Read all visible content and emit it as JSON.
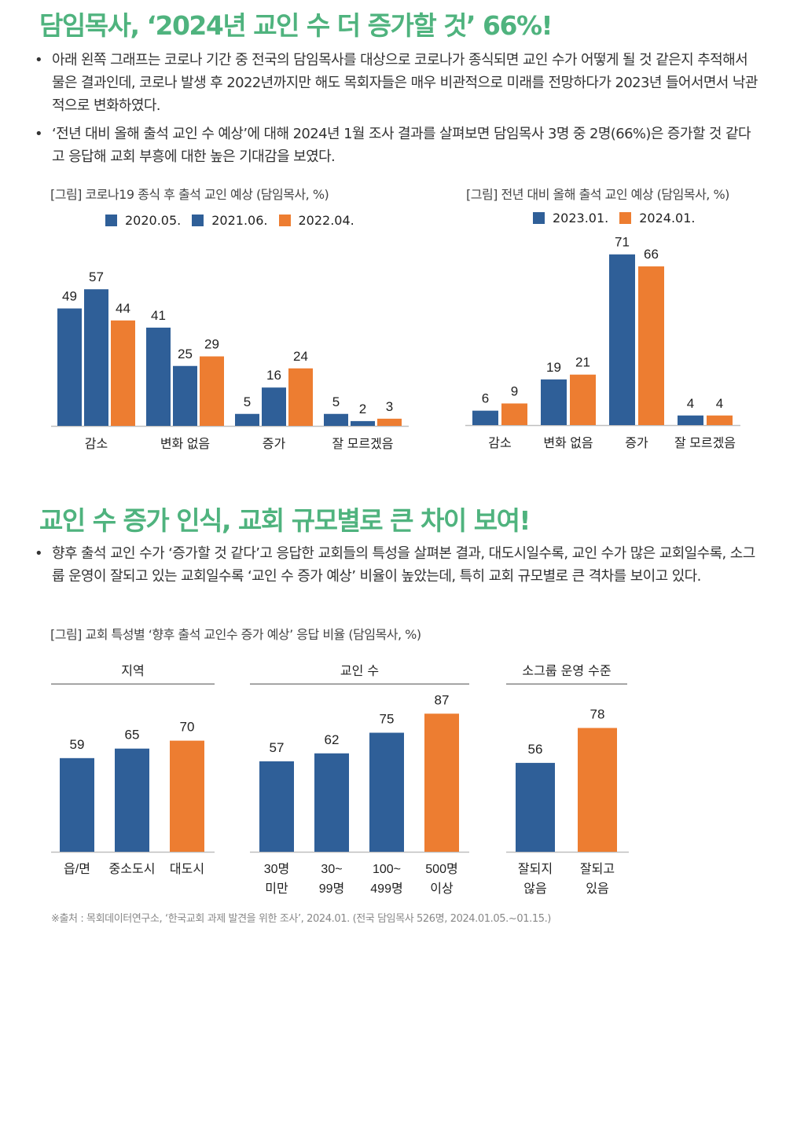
{
  "colors": {
    "title_green": "#4fb37e",
    "blue": "#2f5f98",
    "orange": "#ed7d31",
    "axis": "#bfbfbf"
  },
  "section1": {
    "title": "담임목사, ‘2024년 교인 수 더 증가할 것’ 66%!",
    "bullets": [
      "아래 왼쪽 그래프는 코로나 기간 중 전국의 담임목사를 대상으로 코로나가 종식되면 교인 수가 어떻게 될 것 같은지 추적해서 물은 결과인데, 코로나 발생 후 2022년까지만 해도 목회자들은 매우 비관적으로 미래를 전망하다가 2023년 들어서면서 낙관적으로 변화하였다.",
      "‘전년 대비 올해 출석 교인 수 예상’에 대해 2024년 1월 조사 결과를 살펴보면 담임목사 3명 중 2명(66%)은 증가할 것 같다고 응답해 교회 부흥에 대한 높은 기대감을 보였다."
    ],
    "bullet_glyph": "•"
  },
  "section2": {
    "title": "교인 수 증가 인식, 교회 규모별로 큰 차이 보여!",
    "bullets": [
      "향후 출석 교인 수가 ‘증가할 것 같다’고 응답한 교회들의 특성을 살펴본 결과, 대도시일수록, 교인 수가 많은 교회일수록, 소그룹 운영이 잘되고 있는 교회일수록 ‘교인 수 증가 예상’ 비율이 높았는데, 특히 교회 규모별로 큰 격차를 보이고 있다."
    ]
  },
  "source": "※출처 : 목회데이터연구소, ‘한국교회 과제 발견을 위한 조사’, 2024.01. (전국 담임목사 526명, 2024.01.05.~01.15.)",
  "chart_data": [
    {
      "type": "bar",
      "title": "[그림] 코로나19 종식 후 출석 교인 예상 (담임목사, %)",
      "categories": [
        "감소",
        "변화 없음",
        "증가",
        "잘 모르겠음"
      ],
      "series": [
        {
          "name": "2020.05.",
          "color": "#2f5f98",
          "values": [
            49,
            41,
            5,
            5
          ]
        },
        {
          "name": "2021.06.",
          "color": "#2f5f98",
          "values": [
            57,
            25,
            16,
            2
          ]
        },
        {
          "name": "2022.04.",
          "color": "#ed7d31",
          "values": [
            44,
            29,
            24,
            3
          ]
        }
      ],
      "legend": "top-center",
      "ylim": [
        0,
        60
      ],
      "xlabel": "",
      "ylabel": "",
      "grid": false
    },
    {
      "type": "bar",
      "title": "[그림] 전년 대비 올해 출석 교인 예상 (담임목사, %)",
      "categories": [
        "감소",
        "변화 없음",
        "증가",
        "잘 모르겠음"
      ],
      "series": [
        {
          "name": "2023.01.",
          "color": "#2f5f98",
          "values": [
            6,
            19,
            71,
            4
          ]
        },
        {
          "name": "2024.01.",
          "color": "#ed7d31",
          "values": [
            9,
            21,
            66,
            4
          ]
        }
      ],
      "legend": "top-center",
      "ylim": [
        0,
        75
      ],
      "xlabel": "",
      "ylabel": "",
      "grid": false
    },
    {
      "type": "bar",
      "title": "[그림] 교회 특성별 ‘향후 출석 교인수 증가 예상’ 응답 비율 (담임목사, %)",
      "ylim": [
        0,
        100
      ],
      "grid": false,
      "panels": [
        {
          "name": "지역",
          "categories": [
            "읍/면",
            "중소도시",
            "대도시"
          ],
          "values": [
            59,
            65,
            70
          ],
          "colors": [
            "#2f5f98",
            "#2f5f98",
            "#ed7d31"
          ]
        },
        {
          "name": "교인 수",
          "categories": [
            "30명\n미만",
            "30~\n99명",
            "100~\n499명",
            "500명\n이상"
          ],
          "values": [
            57,
            62,
            75,
            87
          ],
          "colors": [
            "#2f5f98",
            "#2f5f98",
            "#2f5f98",
            "#ed7d31"
          ]
        },
        {
          "name": "소그룹 운영 수준",
          "categories": [
            "잘되지\n않음",
            "잘되고\n있음"
          ],
          "values": [
            56,
            78
          ],
          "colors": [
            "#2f5f98",
            "#ed7d31"
          ]
        }
      ]
    }
  ]
}
